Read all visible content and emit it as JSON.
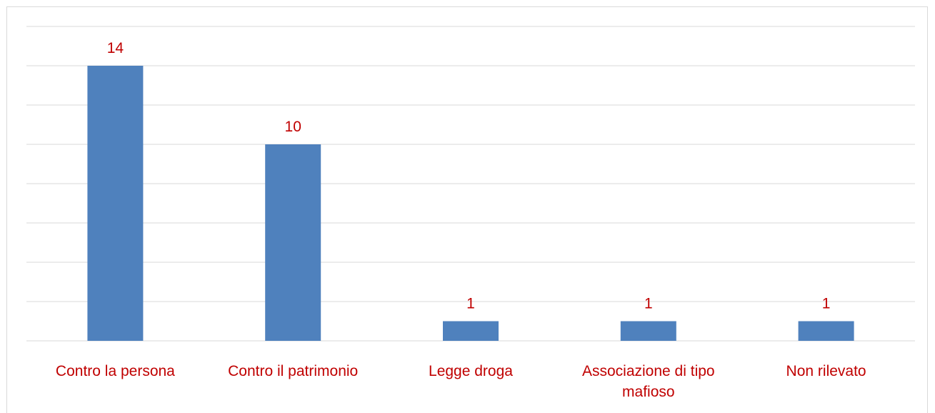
{
  "chart_data": {
    "type": "bar",
    "categories": [
      "Contro la persona",
      "Contro il patrimonio",
      "Legge droga",
      "Associazione di tipo mafioso",
      "Non rilevato"
    ],
    "values": [
      14,
      10,
      1,
      1,
      1
    ],
    "color": "#4f81bd",
    "label_color": "#c00000",
    "ylim": [
      0,
      16
    ],
    "yticks": [
      0,
      2,
      4,
      6,
      8,
      10,
      12,
      14,
      16
    ],
    "grid": true
  }
}
